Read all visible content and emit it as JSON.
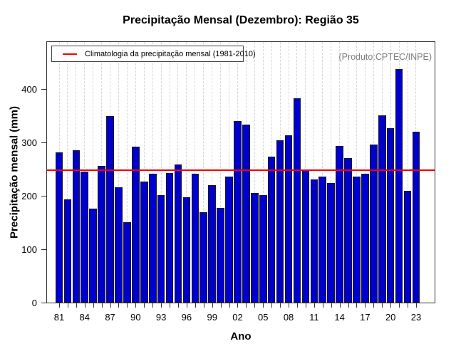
{
  "chart_data": {
    "type": "bar",
    "title": "Precipitação Mensal (Dezembro): Região 35",
    "xlabel": "Ano",
    "ylabel": "Precipitação mensal (mm)",
    "watermark": "(Produto:CPTEC/INPE)",
    "legend_label": "Climatologia da precipitação mensal (1981-2010)",
    "legend_position": "top-left",
    "grid": "vertical-dashed",
    "ylim": [
      0,
      490
    ],
    "y_ticks": [
      0,
      100,
      200,
      300,
      400
    ],
    "x_tick_labels_shown": [
      "81",
      "84",
      "87",
      "90",
      "93",
      "96",
      "99",
      "02",
      "05",
      "08",
      "11",
      "14",
      "17",
      "20",
      "23"
    ],
    "categories": [
      "81",
      "82",
      "83",
      "84",
      "85",
      "86",
      "87",
      "88",
      "89",
      "90",
      "91",
      "92",
      "93",
      "94",
      "95",
      "96",
      "97",
      "98",
      "99",
      "00",
      "01",
      "02",
      "03",
      "04",
      "05",
      "06",
      "07",
      "08",
      "09",
      "10",
      "11",
      "12",
      "13",
      "14",
      "15",
      "16",
      "17",
      "18",
      "19",
      "20",
      "21",
      "22",
      "23"
    ],
    "values": [
      281,
      194,
      285,
      246,
      176,
      256,
      349,
      216,
      151,
      292,
      227,
      242,
      201,
      243,
      259,
      198,
      242,
      169,
      220,
      178,
      236,
      340,
      334,
      206,
      202,
      274,
      304,
      313,
      383,
      248,
      231,
      236,
      224,
      293,
      271,
      236,
      241,
      296,
      351,
      327,
      438,
      210,
      320
    ],
    "climatology_value": 248,
    "colors": {
      "bar_fill": "#0000cd",
      "bar_border": "#1a1a1a",
      "climatology_line": "#f50000",
      "gridline": "#d6d6d6",
      "watermark": "#7f7f7f",
      "axis": "#333333"
    }
  }
}
